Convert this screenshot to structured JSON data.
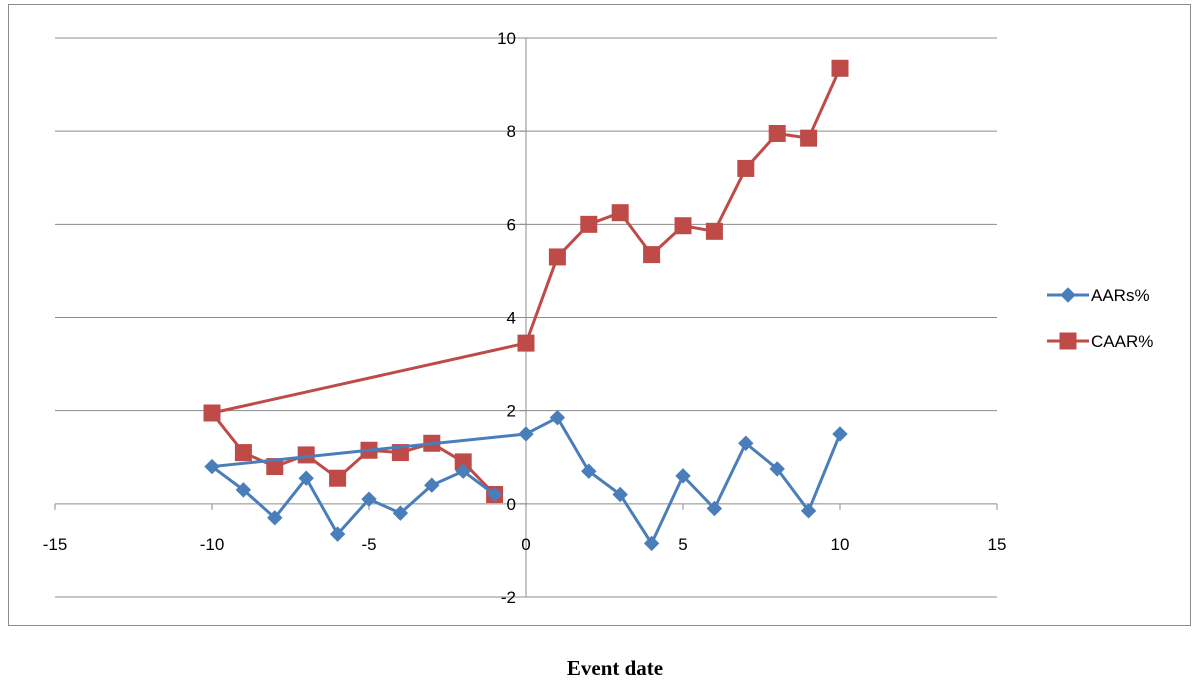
{
  "chart_data": {
    "type": "line",
    "xlabel": "Event date",
    "ylabel": "",
    "title": "",
    "xlim": [
      -15,
      15
    ],
    "ylim": [
      -2,
      10
    ],
    "x_ticks": [
      -15,
      -10,
      -5,
      0,
      5,
      10,
      15
    ],
    "y_ticks": [
      -2,
      0,
      2,
      4,
      6,
      8,
      10
    ],
    "grid": "horizontal",
    "legend": "right",
    "series": [
      {
        "name": "AARs%",
        "color": "#4a7ebb",
        "marker": "diamond",
        "x": [
          -10,
          -9,
          -8,
          -7,
          -6,
          -5,
          -4,
          -3,
          -2,
          -1,
          0,
          1,
          2,
          3,
          4,
          5,
          6,
          7,
          8,
          9,
          10
        ],
        "y": [
          0.8,
          0.3,
          -0.3,
          0.55,
          -0.65,
          0.1,
          -0.2,
          0.4,
          0.7,
          0.2,
          1.5,
          1.85,
          0.7,
          0.2,
          -0.85,
          0.6,
          -0.1,
          1.3,
          0.75,
          -0.15,
          1.5
        ]
      },
      {
        "name": "CAAR%",
        "color": "#be4b48",
        "marker": "square",
        "x": [
          -10,
          -9,
          -8,
          -7,
          -6,
          -5,
          -4,
          -3,
          -2,
          -1,
          0,
          1,
          2,
          3,
          4,
          5,
          6,
          7,
          8,
          9,
          10
        ],
        "y": [
          1.95,
          1.1,
          0.8,
          1.05,
          0.55,
          1.15,
          1.1,
          1.3,
          0.9,
          0.2,
          3.45,
          5.3,
          6.0,
          6.25,
          5.35,
          5.97,
          5.85,
          7.2,
          7.95,
          7.85,
          9.35
        ]
      }
    ]
  }
}
